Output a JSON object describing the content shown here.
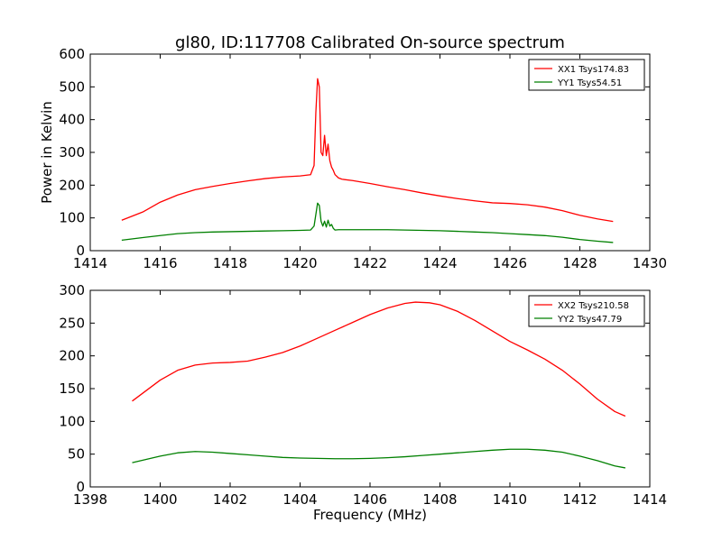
{
  "figure": {
    "title": "gl80, ID:117708 Calibrated On-source spectrum"
  },
  "chart_data": [
    {
      "type": "line",
      "ylabel": "Power in Kelvin",
      "xlabel": "",
      "xlim": [
        1414,
        1430
      ],
      "ylim": [
        0,
        600
      ],
      "xticks": [
        1414,
        1416,
        1418,
        1420,
        1422,
        1424,
        1426,
        1428,
        1430
      ],
      "yticks": [
        0,
        100,
        200,
        300,
        400,
        500,
        600
      ],
      "grid": false,
      "legend_position": "top-right",
      "series": [
        {
          "name": "XX1 Tsys174.83",
          "color": "#ff0000",
          "x": [
            1414.9,
            1415.5,
            1416.0,
            1416.5,
            1417.0,
            1417.5,
            1418.0,
            1418.5,
            1419.0,
            1419.5,
            1420.0,
            1420.3,
            1420.4,
            1420.45,
            1420.5,
            1420.55,
            1420.6,
            1420.65,
            1420.7,
            1420.75,
            1420.8,
            1420.85,
            1420.9,
            1420.95,
            1421.0,
            1421.1,
            1421.2,
            1421.5,
            1422.0,
            1422.5,
            1423.0,
            1423.5,
            1424.0,
            1424.5,
            1425.0,
            1425.5,
            1426.0,
            1426.5,
            1427.0,
            1427.5,
            1428.0,
            1428.5,
            1428.95
          ],
          "y": [
            93,
            118,
            148,
            170,
            186,
            196,
            205,
            213,
            220,
            225,
            228,
            232,
            260,
            420,
            525,
            500,
            300,
            290,
            352,
            290,
            325,
            275,
            255,
            245,
            232,
            222,
            218,
            214,
            205,
            195,
            186,
            176,
            167,
            159,
            152,
            146,
            144,
            140,
            133,
            122,
            108,
            97,
            89
          ]
        },
        {
          "name": "YY1 Tsys54.51",
          "color": "#008000",
          "x": [
            1414.9,
            1415.5,
            1416.0,
            1416.5,
            1417.0,
            1417.5,
            1418.0,
            1418.5,
            1419.0,
            1419.5,
            1420.0,
            1420.3,
            1420.4,
            1420.5,
            1420.55,
            1420.6,
            1420.65,
            1420.7,
            1420.75,
            1420.8,
            1420.85,
            1420.9,
            1420.95,
            1421.0,
            1421.1,
            1421.5,
            1422.0,
            1422.5,
            1423.0,
            1423.5,
            1424.0,
            1424.5,
            1425.0,
            1425.5,
            1426.0,
            1426.5,
            1427.0,
            1427.5,
            1428.0,
            1428.5,
            1428.95
          ],
          "y": [
            32,
            40,
            46,
            52,
            55,
            57,
            58,
            59,
            60,
            61,
            62,
            63,
            75,
            145,
            138,
            90,
            75,
            90,
            72,
            93,
            75,
            80,
            68,
            63,
            64,
            64,
            64,
            64,
            63,
            62,
            61,
            59,
            57,
            55,
            52,
            49,
            46,
            41,
            34,
            29,
            25
          ]
        }
      ]
    },
    {
      "type": "line",
      "ylabel": "",
      "xlabel": "Frequency (MHz)",
      "xlim": [
        1398,
        1414
      ],
      "ylim": [
        0,
        300
      ],
      "xticks": [
        1398,
        1400,
        1402,
        1404,
        1406,
        1408,
        1410,
        1412,
        1414
      ],
      "yticks": [
        0,
        50,
        100,
        150,
        200,
        250,
        300
      ],
      "grid": false,
      "legend_position": "top-right",
      "series": [
        {
          "name": "XX2 Tsys210.58",
          "color": "#ff0000",
          "x": [
            1399.2,
            1399.6,
            1400.0,
            1400.5,
            1401.0,
            1401.5,
            1402.0,
            1402.5,
            1403.0,
            1403.5,
            1404.0,
            1404.5,
            1405.0,
            1405.5,
            1406.0,
            1406.5,
            1407.0,
            1407.3,
            1407.7,
            1408.0,
            1408.5,
            1409.0,
            1409.5,
            1410.0,
            1410.5,
            1411.0,
            1411.5,
            1412.0,
            1412.5,
            1413.0,
            1413.3
          ],
          "y": [
            131,
            147,
            163,
            178,
            186,
            189,
            190,
            192,
            198,
            205,
            215,
            227,
            239,
            251,
            263,
            273,
            280,
            282,
            281,
            278,
            268,
            254,
            238,
            222,
            209,
            195,
            178,
            157,
            134,
            115,
            108
          ]
        },
        {
          "name": "YY2 Tsys47.79",
          "color": "#008000",
          "x": [
            1399.2,
            1399.6,
            1400.0,
            1400.5,
            1401.0,
            1401.5,
            1402.0,
            1402.5,
            1403.0,
            1403.5,
            1404.0,
            1404.5,
            1405.0,
            1405.5,
            1406.0,
            1406.5,
            1407.0,
            1407.5,
            1408.0,
            1408.5,
            1409.0,
            1409.5,
            1410.0,
            1410.5,
            1411.0,
            1411.5,
            1412.0,
            1412.5,
            1413.0,
            1413.3
          ],
          "y": [
            37,
            42,
            47,
            52,
            54,
            53,
            51,
            49,
            47,
            45,
            44,
            43.5,
            43,
            43,
            43.5,
            44.5,
            46,
            48,
            50,
            52,
            54,
            56,
            57.5,
            57.5,
            56,
            53,
            47,
            40,
            32,
            29
          ]
        }
      ]
    }
  ]
}
